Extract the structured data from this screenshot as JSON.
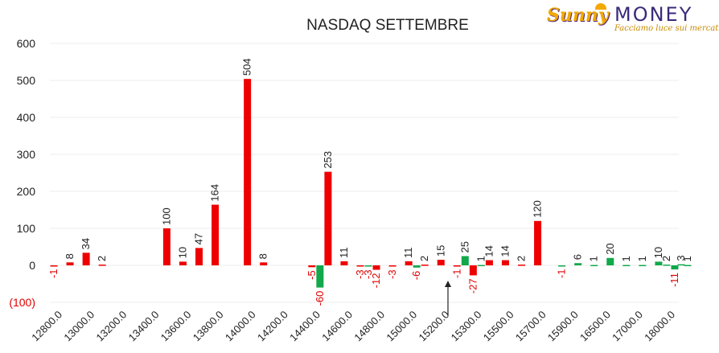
{
  "logo": {
    "brand_sunny": "Sunny",
    "brand_money": "MONEY",
    "tagline": "Facciamo luce sui mercati"
  },
  "colors": {
    "positive": "#ee0000",
    "negative": "#12a84b",
    "negative_label": "#e00000"
  },
  "chart_data": {
    "type": "bar",
    "title": "NASDAQ SETTEMBRE",
    "xlabel": "",
    "ylabel": "",
    "ylim": [
      -100,
      600
    ],
    "yticks": [
      "600",
      "500",
      "400",
      "300",
      "200",
      "100",
      "0",
      "(100)"
    ],
    "ytick_values": [
      600,
      500,
      400,
      300,
      200,
      100,
      0,
      -100
    ],
    "grid": true,
    "legend": "none",
    "category_count": 39,
    "x_tick_labels": [
      {
        "index": 0,
        "label": "12800.0"
      },
      {
        "index": 2,
        "label": "13000.0"
      },
      {
        "index": 4,
        "label": "13200.0"
      },
      {
        "index": 6,
        "label": "13400.0"
      },
      {
        "index": 8,
        "label": "13600.0"
      },
      {
        "index": 10,
        "label": "13800.0"
      },
      {
        "index": 12,
        "label": "14000.0"
      },
      {
        "index": 14,
        "label": "14200.0"
      },
      {
        "index": 16,
        "label": "14400.0"
      },
      {
        "index": 18,
        "label": "14600.0"
      },
      {
        "index": 20,
        "label": "14800.0"
      },
      {
        "index": 22,
        "label": "15000.0"
      },
      {
        "index": 24,
        "label": "15200.0"
      },
      {
        "index": 26,
        "label": "15300.0"
      },
      {
        "index": 28,
        "label": "15500.0"
      },
      {
        "index": 30,
        "label": "15700.0"
      },
      {
        "index": 32,
        "label": "15900.0"
      },
      {
        "index": 34,
        "label": "16500.0"
      },
      {
        "index": 36,
        "label": "17000.0"
      },
      {
        "index": 38,
        "label": "18000.0"
      }
    ],
    "series": [
      {
        "values": [
          {
            "index": 0,
            "value": -1,
            "label": "-1"
          },
          {
            "index": 1,
            "value": 8,
            "label": "8"
          },
          {
            "index": 2,
            "value": 34,
            "label": "34"
          },
          {
            "index": 3,
            "value": 2,
            "label": "2"
          },
          {
            "index": 7,
            "value": 100,
            "label": "100"
          },
          {
            "index": 8,
            "value": 10,
            "label": "10"
          },
          {
            "index": 9,
            "value": 47,
            "label": "47"
          },
          {
            "index": 10,
            "value": 164,
            "label": "164"
          },
          {
            "index": 12,
            "value": 504,
            "label": "504"
          },
          {
            "index": 13,
            "value": 8,
            "label": "8"
          },
          {
            "index": 16,
            "value": -5,
            "label": "-5"
          },
          {
            "index": 17,
            "value": 253,
            "label": "253"
          },
          {
            "index": 18,
            "value": 11,
            "label": "11"
          },
          {
            "index": 19,
            "value": -3,
            "label": "-3"
          },
          {
            "index": 20,
            "value": -12,
            "label": "-12"
          },
          {
            "index": 21,
            "value": -3,
            "label": "-3"
          },
          {
            "index": 22,
            "value": 11,
            "label": "11"
          },
          {
            "index": 23,
            "value": 2,
            "label": "2"
          },
          {
            "index": 24,
            "value": 15,
            "label": "15"
          },
          {
            "index": 25,
            "value": -1,
            "label": "-1"
          },
          {
            "index": 26,
            "value": -27,
            "label": "-27"
          },
          {
            "index": 27,
            "value": 14,
            "label": "14"
          },
          {
            "index": 28,
            "value": 14,
            "label": "14"
          },
          {
            "index": 29,
            "value": 2,
            "label": "2"
          },
          {
            "index": 30,
            "value": 120,
            "label": "120"
          }
        ]
      },
      {
        "values": [
          {
            "index": 16,
            "value": -60,
            "label": "-60"
          },
          {
            "index": 19,
            "value": -3,
            "label": "-3"
          },
          {
            "index": 22,
            "value": -6,
            "label": "-6"
          },
          {
            "index": 25,
            "value": 25,
            "label": "25"
          },
          {
            "index": 26,
            "value": 1,
            "label": "1"
          },
          {
            "index": 31,
            "value": -1,
            "label": "-1"
          },
          {
            "index": 32,
            "value": 6,
            "label": "6"
          },
          {
            "index": 33,
            "value": 1,
            "label": "1"
          },
          {
            "index": 34,
            "value": 20,
            "label": "20"
          },
          {
            "index": 35,
            "value": 1,
            "label": "1"
          },
          {
            "index": 36,
            "value": 1,
            "label": "1"
          },
          {
            "index": 37,
            "value": 10,
            "label": "10"
          },
          {
            "index": 37.5,
            "value": 2,
            "label": "2"
          },
          {
            "index": 38,
            "value": -11,
            "label": "-11"
          },
          {
            "index": 38.4,
            "value": 3,
            "label": "3"
          },
          {
            "index": 38.8,
            "value": 1,
            "label": "1"
          }
        ]
      }
    ]
  }
}
